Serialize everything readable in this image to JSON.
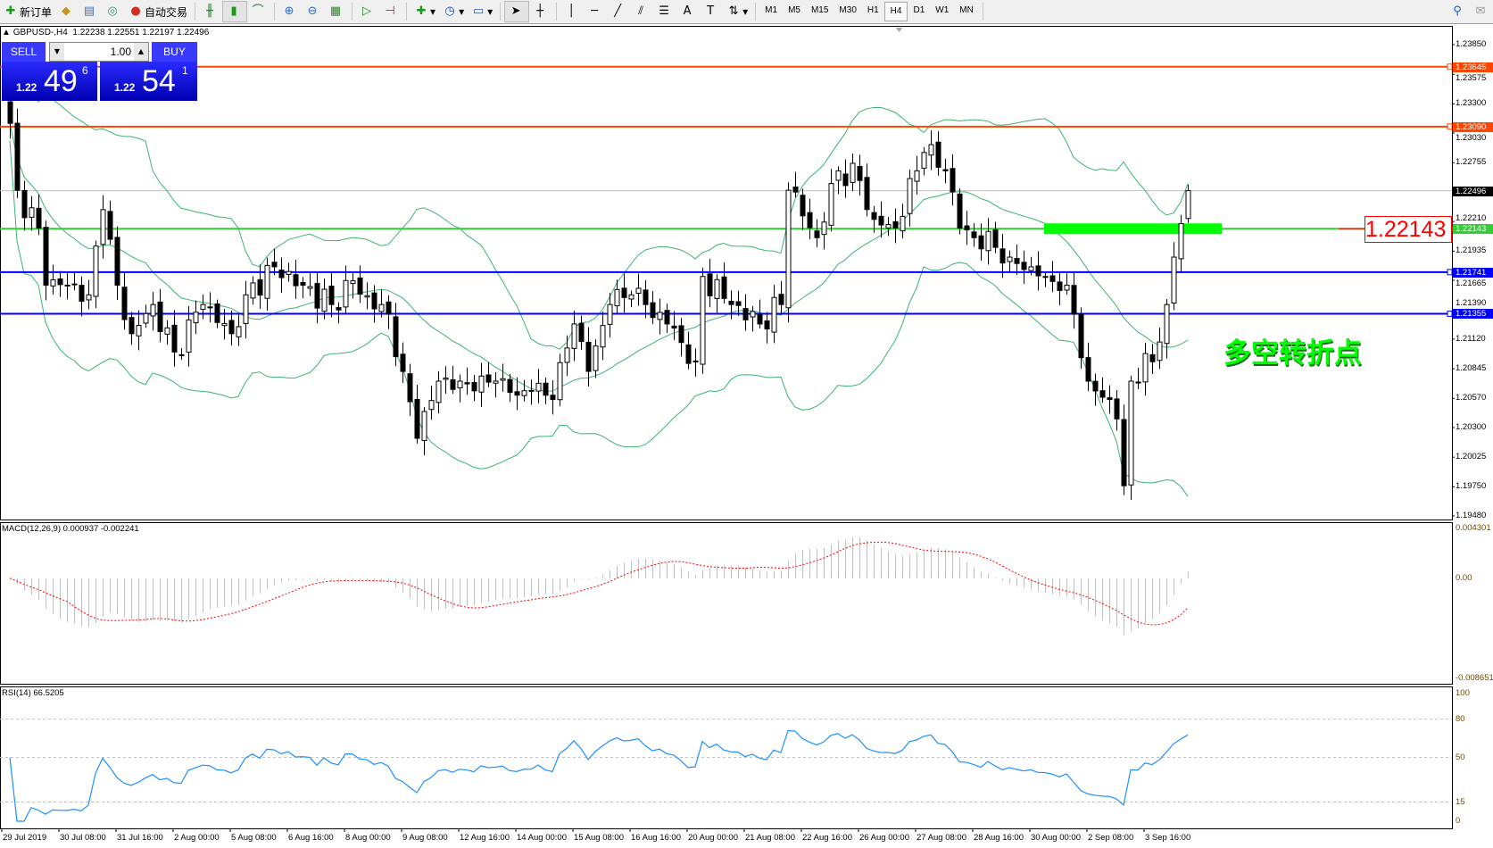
{
  "toolbar": {
    "new_order": "新订单",
    "auto_trading": "自动交易",
    "icons": [
      "new-order-icon",
      "market-watch-icon",
      "navigator-icon",
      "signals-icon",
      "auto-trading-icon",
      "bar-chart-icon",
      "candlestick-icon",
      "line-chart-icon",
      "zoom-in-icon",
      "zoom-out-icon",
      "tile-windows-icon",
      "auto-scroll-icon",
      "chart-shift-icon",
      "indicators-icon",
      "periods-icon",
      "templates-icon",
      "cursor-icon",
      "crosshair-icon",
      "vertical-line-icon",
      "horizontal-line-icon",
      "trendline-icon",
      "equidistant-channel-icon",
      "fibonacci-icon",
      "text-icon",
      "text-label-icon",
      "arrows-icon",
      "search-icon",
      "chat-icon"
    ],
    "timeframes": [
      "M1",
      "M5",
      "M15",
      "M30",
      "H1",
      "H4",
      "D1",
      "W1",
      "MN"
    ],
    "active_timeframe": "H4"
  },
  "chart": {
    "info_line": "GBPUSD-,H4  1.22238 1.22551 1.22197 1.22496",
    "symbol": "GBPUSD-",
    "timeframe": "H4",
    "ohlc": {
      "open": 1.22238,
      "high": 1.22551,
      "low": 1.22197,
      "close": 1.22496
    }
  },
  "trade_panel": {
    "sell_label": "SELL",
    "buy_label": "BUY",
    "lot": "1.00",
    "sell_prefix": "1.22",
    "sell_big": "49",
    "sell_sup": "6",
    "buy_prefix": "1.22",
    "buy_big": "54",
    "buy_sup": "1"
  },
  "price_axis": {
    "ticks": [
      "1.23850",
      "1.23575",
      "1.23300",
      "1.23030",
      "1.22755",
      "1.22210",
      "1.21935",
      "1.21665",
      "1.21390",
      "1.21120",
      "1.20845",
      "1.20570",
      "1.20300",
      "1.20025",
      "1.19750",
      "1.19480"
    ],
    "range": [
      1.1948,
      1.2385
    ],
    "current_price": "1.22496"
  },
  "levels": [
    {
      "price": "1.23645",
      "color": "#ff4500"
    },
    {
      "price": "1.23090",
      "color": "#ff4500"
    },
    {
      "price": "1.22143",
      "color": "#32cd32"
    },
    {
      "price": "1.21741",
      "color": "#0000ff"
    },
    {
      "price": "1.21355",
      "color": "#0000ff"
    }
  ],
  "annotations": {
    "price_label": "1.22143",
    "text": "多空转折点",
    "text_color": "#00ff00",
    "zone_price": 1.22143,
    "zone_color": "#00ff00"
  },
  "time_axis": [
    "29 Jul 2019",
    "30 Jul 08:00",
    "31 Jul 16:00",
    "2 Aug 00:00",
    "5 Aug 08:00",
    "6 Aug 16:00",
    "8 Aug 00:00",
    "9 Aug 08:00",
    "12 Aug 16:00",
    "14 Aug 00:00",
    "15 Aug 08:00",
    "16 Aug 16:00",
    "20 Aug 00:00",
    "21 Aug 08:00",
    "22 Aug 16:00",
    "26 Aug 00:00",
    "27 Aug 08:00",
    "28 Aug 16:00",
    "30 Aug 00:00",
    "2 Sep 08:00",
    "3 Sep 16:00"
  ],
  "macd": {
    "label": "MACD(12,26,9) 0.000937 -0.002241",
    "axis": [
      "0.004301",
      "0.00",
      "-0.008651"
    ],
    "range": [
      -0.008651,
      0.004301
    ],
    "histogram_color": "#c0c0c0",
    "signal_color": "#ff0000"
  },
  "rsi": {
    "label": "RSI(14) 66.5205",
    "axis": [
      "100",
      "80",
      "50",
      "15",
      "0"
    ],
    "levels": [
      80,
      50,
      15
    ],
    "line_color": "#1e90ff"
  },
  "chart_data": {
    "type": "candlestick",
    "bars": 166,
    "bollinger": {
      "period": 20,
      "deviation": 2,
      "color": "#3cb371"
    },
    "close_keypoints": [
      [
        0,
        1.2312
      ],
      [
        1,
        1.225
      ],
      [
        4,
        1.2215
      ],
      [
        5,
        1.2162
      ],
      [
        8,
        1.2162
      ],
      [
        11,
        1.2153
      ],
      [
        13,
        1.2232
      ],
      [
        15,
        1.2162
      ],
      [
        17,
        1.2117
      ],
      [
        20,
        1.2144
      ],
      [
        23,
        1.21
      ],
      [
        27,
        1.2144
      ],
      [
        31,
        1.2117
      ],
      [
        33,
        1.2153
      ],
      [
        37,
        1.2179
      ],
      [
        41,
        1.2162
      ],
      [
        45,
        1.2144
      ],
      [
        48,
        1.2166
      ],
      [
        51,
        1.214
      ],
      [
        53,
        1.2135
      ],
      [
        55,
        1.2082
      ],
      [
        57,
        1.202
      ],
      [
        60,
        1.2073
      ],
      [
        63,
        1.2073
      ],
      [
        65,
        1.2064
      ],
      [
        68,
        1.2073
      ],
      [
        71,
        1.206
      ],
      [
        73,
        1.2064
      ],
      [
        76,
        1.2056
      ],
      [
        79,
        1.2126
      ],
      [
        81,
        1.2082
      ],
      [
        84,
        1.2144
      ],
      [
        87,
        1.2153
      ],
      [
        89,
        1.2144
      ],
      [
        92,
        1.2126
      ],
      [
        96,
        1.2091
      ],
      [
        97,
        1.217
      ],
      [
        101,
        1.2144
      ],
      [
        105,
        1.2126
      ],
      [
        108,
        1.2144
      ],
      [
        109,
        1.225
      ],
      [
        113,
        1.2206
      ],
      [
        116,
        1.2268
      ],
      [
        119,
        1.2259
      ],
      [
        121,
        1.2223
      ],
      [
        124,
        1.2215
      ],
      [
        127,
        1.2268
      ],
      [
        128,
        1.2285
      ],
      [
        131,
        1.2268
      ],
      [
        133,
        1.2215
      ],
      [
        135,
        1.2206
      ],
      [
        138,
        1.2197
      ],
      [
        140,
        1.2188
      ],
      [
        143,
        1.2179
      ],
      [
        145,
        1.217
      ],
      [
        148,
        1.2162
      ],
      [
        149,
        1.2135
      ],
      [
        151,
        1.2073
      ],
      [
        154,
        1.2056
      ],
      [
        155,
        1.2038
      ],
      [
        156,
        1.1976
      ],
      [
        157,
        1.2073
      ],
      [
        160,
        1.2091
      ],
      [
        162,
        1.2144
      ],
      [
        163,
        1.2188
      ],
      [
        164,
        1.2219
      ],
      [
        165,
        1.22496
      ]
    ]
  }
}
